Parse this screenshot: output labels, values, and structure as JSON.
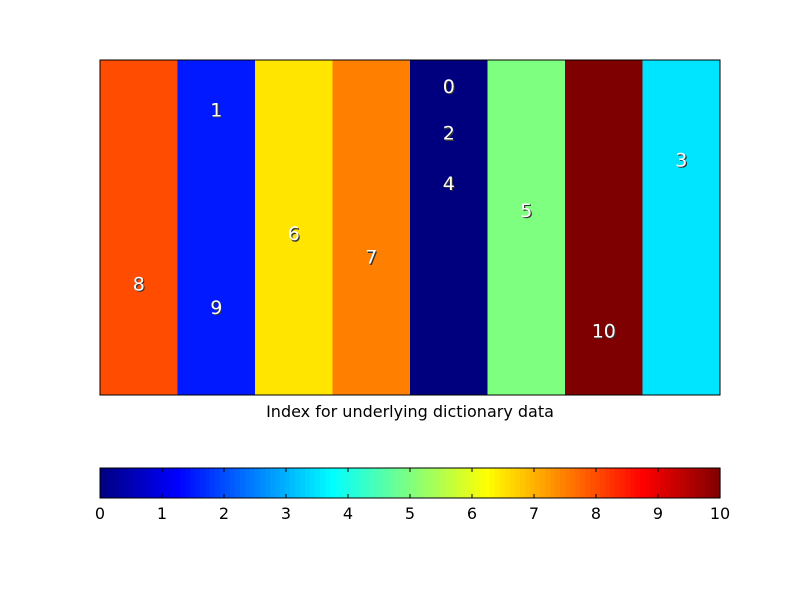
{
  "chart_data": {
    "type": "heatmap",
    "xlabel": "Index for underlying dictionary data",
    "ylabel": "",
    "title": "",
    "grid": false,
    "columns": [
      {
        "color_value": 8,
        "labels": [
          {
            "text": "8",
            "y": 0.67
          }
        ]
      },
      {
        "color_value": 1.5,
        "labels": [
          {
            "text": "1",
            "y": 0.15
          },
          {
            "text": "9",
            "y": 0.74
          }
        ]
      },
      {
        "color_value": 6.5,
        "labels": [
          {
            "text": "6",
            "y": 0.52
          }
        ]
      },
      {
        "color_value": 7.5,
        "labels": [
          {
            "text": "7",
            "y": 0.59
          }
        ]
      },
      {
        "color_value": 0,
        "labels": [
          {
            "text": "0",
            "y": 0.08
          },
          {
            "text": "2",
            "y": 0.22
          },
          {
            "text": "4",
            "y": 0.37
          }
        ]
      },
      {
        "color_value": 5,
        "labels": [
          {
            "text": "5",
            "y": 0.45
          }
        ]
      },
      {
        "color_value": 10,
        "labels": [
          {
            "text": "10",
            "y": 0.81
          }
        ]
      },
      {
        "color_value": 3.5,
        "labels": [
          {
            "text": "3",
            "y": 0.3
          }
        ]
      }
    ],
    "colorbar": {
      "colormap": "jet",
      "range": [
        0,
        10
      ],
      "orientation": "horizontal",
      "ticks": [
        "0",
        "1",
        "2",
        "3",
        "4",
        "5",
        "6",
        "7",
        "8",
        "9",
        "10"
      ]
    }
  },
  "colors": {
    "jet_stops": [
      "#00007f",
      "#0000ff",
      "#007fff",
      "#00ffff",
      "#7fff7f",
      "#ffff00",
      "#ff7f00",
      "#ff0000",
      "#7f0000"
    ],
    "label_fill": "#ffffff",
    "label_shadow": "#333333",
    "frame": "#000000"
  }
}
